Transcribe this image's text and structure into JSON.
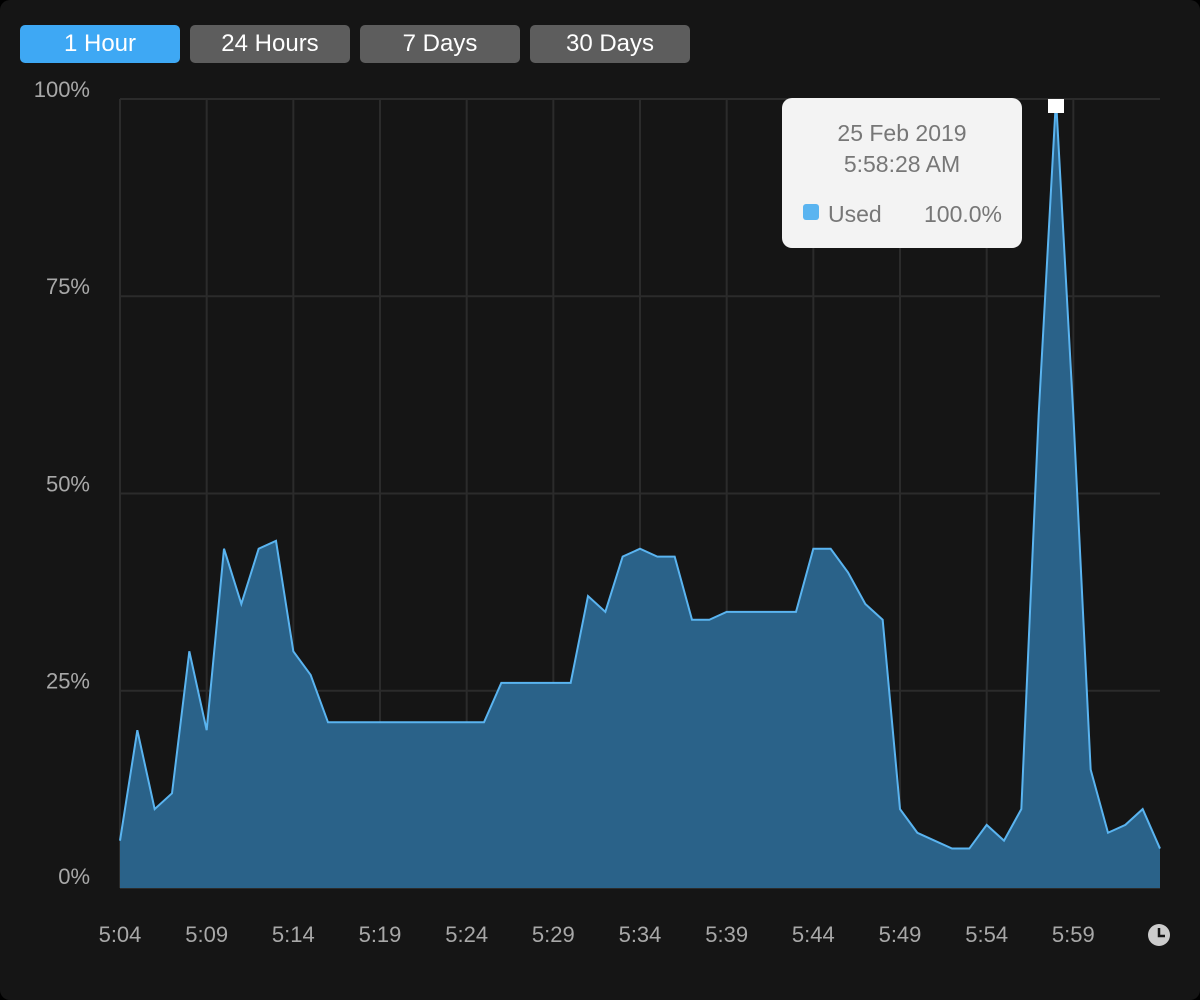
{
  "tabs": {
    "items": [
      "1 Hour",
      "24 Hours",
      "7 Days",
      "30 Days"
    ],
    "selected": 0
  },
  "chart_data": {
    "type": "area",
    "categories": [
      "5:04",
      null,
      null,
      null,
      null,
      "5:09",
      null,
      null,
      null,
      null,
      "5:14",
      null,
      null,
      null,
      null,
      "5:19",
      null,
      null,
      null,
      null,
      "5:24",
      null,
      null,
      null,
      null,
      "5:29",
      null,
      null,
      null,
      null,
      "5:34",
      null,
      null,
      null,
      null,
      "5:39",
      null,
      null,
      null,
      null,
      "5:44",
      null,
      null,
      null,
      null,
      "5:49",
      null,
      null,
      null,
      null,
      "5:54",
      null,
      null,
      null,
      null,
      "5:59",
      null,
      null,
      null,
      null,
      null
    ],
    "series": [
      {
        "name": "Used",
        "color": "#5ab4f0",
        "fill": "#2a6289",
        "values": [
          6,
          20,
          10,
          12,
          30,
          20,
          43,
          36,
          43,
          44,
          30,
          27,
          21,
          21,
          21,
          21,
          21,
          21,
          21,
          21,
          21,
          21,
          26,
          26,
          26,
          26,
          26,
          37,
          35,
          42,
          43,
          42,
          42,
          34,
          34,
          35,
          35,
          35,
          35,
          35,
          43,
          43,
          40,
          36,
          34,
          10,
          7,
          6,
          5,
          5,
          8,
          6,
          10,
          60,
          100,
          60,
          15,
          7,
          8,
          10,
          5
        ]
      }
    ],
    "ylim": [
      0,
      100
    ],
    "yticks": [
      {
        "value": 0,
        "label": "0%"
      },
      {
        "value": 25,
        "label": "25%"
      },
      {
        "value": 50,
        "label": "50%"
      },
      {
        "value": 75,
        "label": "75%"
      },
      {
        "value": 100,
        "label": "100%"
      }
    ],
    "grid": true,
    "tooltip": {
      "date": "25 Feb 2019",
      "time": "5:58:28 AM",
      "series": "Used",
      "value": "100.0%",
      "index": 54
    }
  }
}
